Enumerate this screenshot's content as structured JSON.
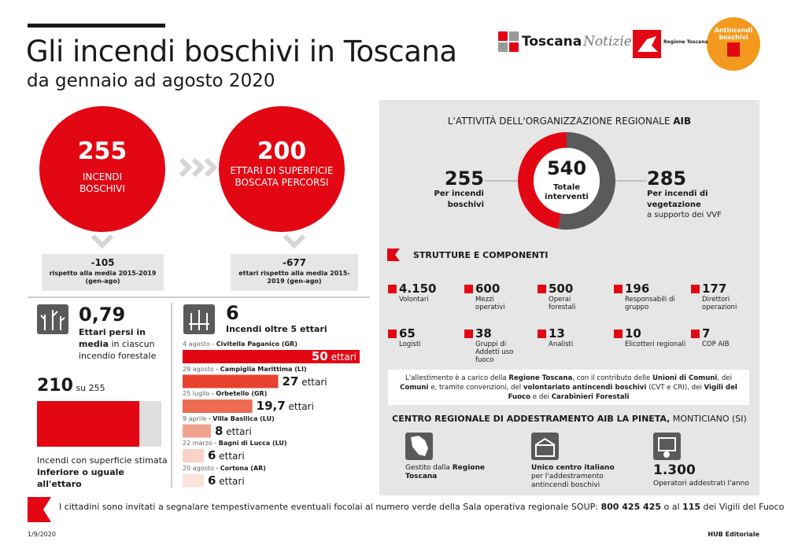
{
  "header": {
    "title": "Gli incendi boschivi in Toscana",
    "subtitle": "da gennaio ad agosto 2020",
    "logo_toscana": "Toscana",
    "logo_notizie": "Notizie",
    "logo_regione": "Regione Toscana",
    "logo_aib": "Antincendi boschivi"
  },
  "circles": [
    {
      "number": "255",
      "label": "INCENDI BOSCHIVI",
      "delta": "-105",
      "note": "rispetto alla media 2015-2019 (gen-ago)"
    },
    {
      "number": "200",
      "label": "ETTARI DI SUPERFICIE BOSCATA PERCORSI",
      "delta": "-677",
      "note": "ettari rispetto alla media 2015-2019 (gen-ago)"
    }
  ],
  "loss": {
    "value": "0,79",
    "text": [
      {
        "text": "Ettari persi in media",
        "bold": true
      },
      {
        "text": " in ciascun incendio forestale",
        "bold": false
      }
    ]
  },
  "small_fires": {
    "count": 210,
    "separator": "su",
    "total": 255,
    "count_color": "#e30613",
    "rest_color": "#dedede",
    "caption": [
      {
        "text": "Incendi con superficie stimata ",
        "bold": false
      },
      {
        "text": "inferiore o uguale all'ettaro",
        "bold": true
      }
    ]
  },
  "big_fires": {
    "count": "6",
    "label": "Incendi oltre 5 ettari",
    "unit": "ettari",
    "items": [
      {
        "date": "4 agosto",
        "place": "Civitella Paganico (GR)",
        "value": 50,
        "label": "50",
        "color": "#e30613"
      },
      {
        "date": "29 agosto",
        "place": "Campiglia Marittima (LI)",
        "value": 27,
        "label": "27",
        "color": "#e8422e"
      },
      {
        "date": "25 luglio",
        "place": "Orbetello (GR)",
        "value": 19.7,
        "label": "19,7",
        "color": "#ec6b52"
      },
      {
        "date": "9 aprile",
        "place": "Villa Basilica (LU)",
        "value": 8,
        "label": "8",
        "color": "#f2a390"
      },
      {
        "date": "22 marzo",
        "place": "Bagni di Lucca (LU)",
        "value": 6,
        "label": "6",
        "color": "#f8d3c8"
      },
      {
        "date": "20 agosto",
        "place": "Cortona (AR)",
        "value": 6,
        "label": "6",
        "color": "#fbe3db"
      }
    ]
  },
  "aib": {
    "title": [
      {
        "text": "L'ATTIVITÀ DELL'ORGANIZZAZIONE REGIONALE ",
        "bold": false
      },
      {
        "text": "AIB",
        "bold": true
      }
    ],
    "total": 540,
    "total_label": "Totale interventi",
    "left": 255,
    "left_label": "Per incendi boschivi",
    "left_color": "#e30613",
    "right": 285,
    "right_label": "Per incendi di vegetazione",
    "right_sub": "a supporto dei VVF",
    "right_color": "#5a5a5a"
  },
  "structures": {
    "title": "STRUTTURE E COMPONENTI",
    "items": [
      {
        "value": "4.150",
        "label": "Volontari"
      },
      {
        "value": "600",
        "label": "Mezzi operativi"
      },
      {
        "value": "500",
        "label": "Operai forestali"
      },
      {
        "value": "196",
        "label": "Responsabili di gruppo"
      },
      {
        "value": "177",
        "label": "Direttori operazioni"
      },
      {
        "value": "65",
        "label": "Logisti"
      },
      {
        "value": "38",
        "label": "Gruppi di Addetti uso fuoco"
      },
      {
        "value": "13",
        "label": "Analisti"
      },
      {
        "value": "10",
        "label": "Elicotteri regionali"
      },
      {
        "value": "7",
        "label": "COP AIB"
      }
    ]
  },
  "note": [
    {
      "text": "L'allestimento è a carico della ",
      "bold": false
    },
    {
      "text": "Regione Toscana",
      "bold": true
    },
    {
      "text": ", con il contributo delle ",
      "bold": false
    },
    {
      "text": "Unioni di Comuni",
      "bold": true
    },
    {
      "text": ", dei ",
      "bold": false
    },
    {
      "text": "Comuni",
      "bold": true
    },
    {
      "text": " e, tramite convenzioni, del ",
      "bold": false
    },
    {
      "text": "volontariato antincendi boschivi",
      "bold": true
    },
    {
      "text": " (CVT e CRI), dei ",
      "bold": false
    },
    {
      "text": "Vigili del Fuoco",
      "bold": true
    },
    {
      "text": " e dei ",
      "bold": false
    },
    {
      "text": "Carabinieri Forestali",
      "bold": true
    }
  ],
  "centre": {
    "title": [
      {
        "text": "CENTRO REGIONALE DI ADDESTRAMENTO AIB LA PINETA,",
        "bold": true
      },
      {
        "text": " MONTICIANO (SI)",
        "bold": false
      }
    ],
    "managed": [
      {
        "text": "Gestito dalla ",
        "bold": false
      },
      {
        "text": "Regione Toscana",
        "bold": true
      }
    ],
    "unique": [
      {
        "text": "Unico centro italiano",
        "bold": true
      },
      {
        "text": " per l'addestramento antincendi boschivi",
        "bold": false
      }
    ],
    "trained_value": "1.300",
    "trained_label": "Operatori addestrati l'anno"
  },
  "footer": {
    "message": [
      {
        "text": "I cittadini sono invitati a segnalare tempestivamente eventuali focolai al numero verde della Sala operativa regionale SOUP: ",
        "bold": false
      },
      {
        "text": "800 425 425",
        "bold": true
      },
      {
        "text": " o al ",
        "bold": false
      },
      {
        "text": "115",
        "bold": true
      },
      {
        "text": " dei Vigili del Fuoco",
        "bold": false
      }
    ],
    "date": "1/9/2020",
    "credit": "HUB Editoriale"
  }
}
